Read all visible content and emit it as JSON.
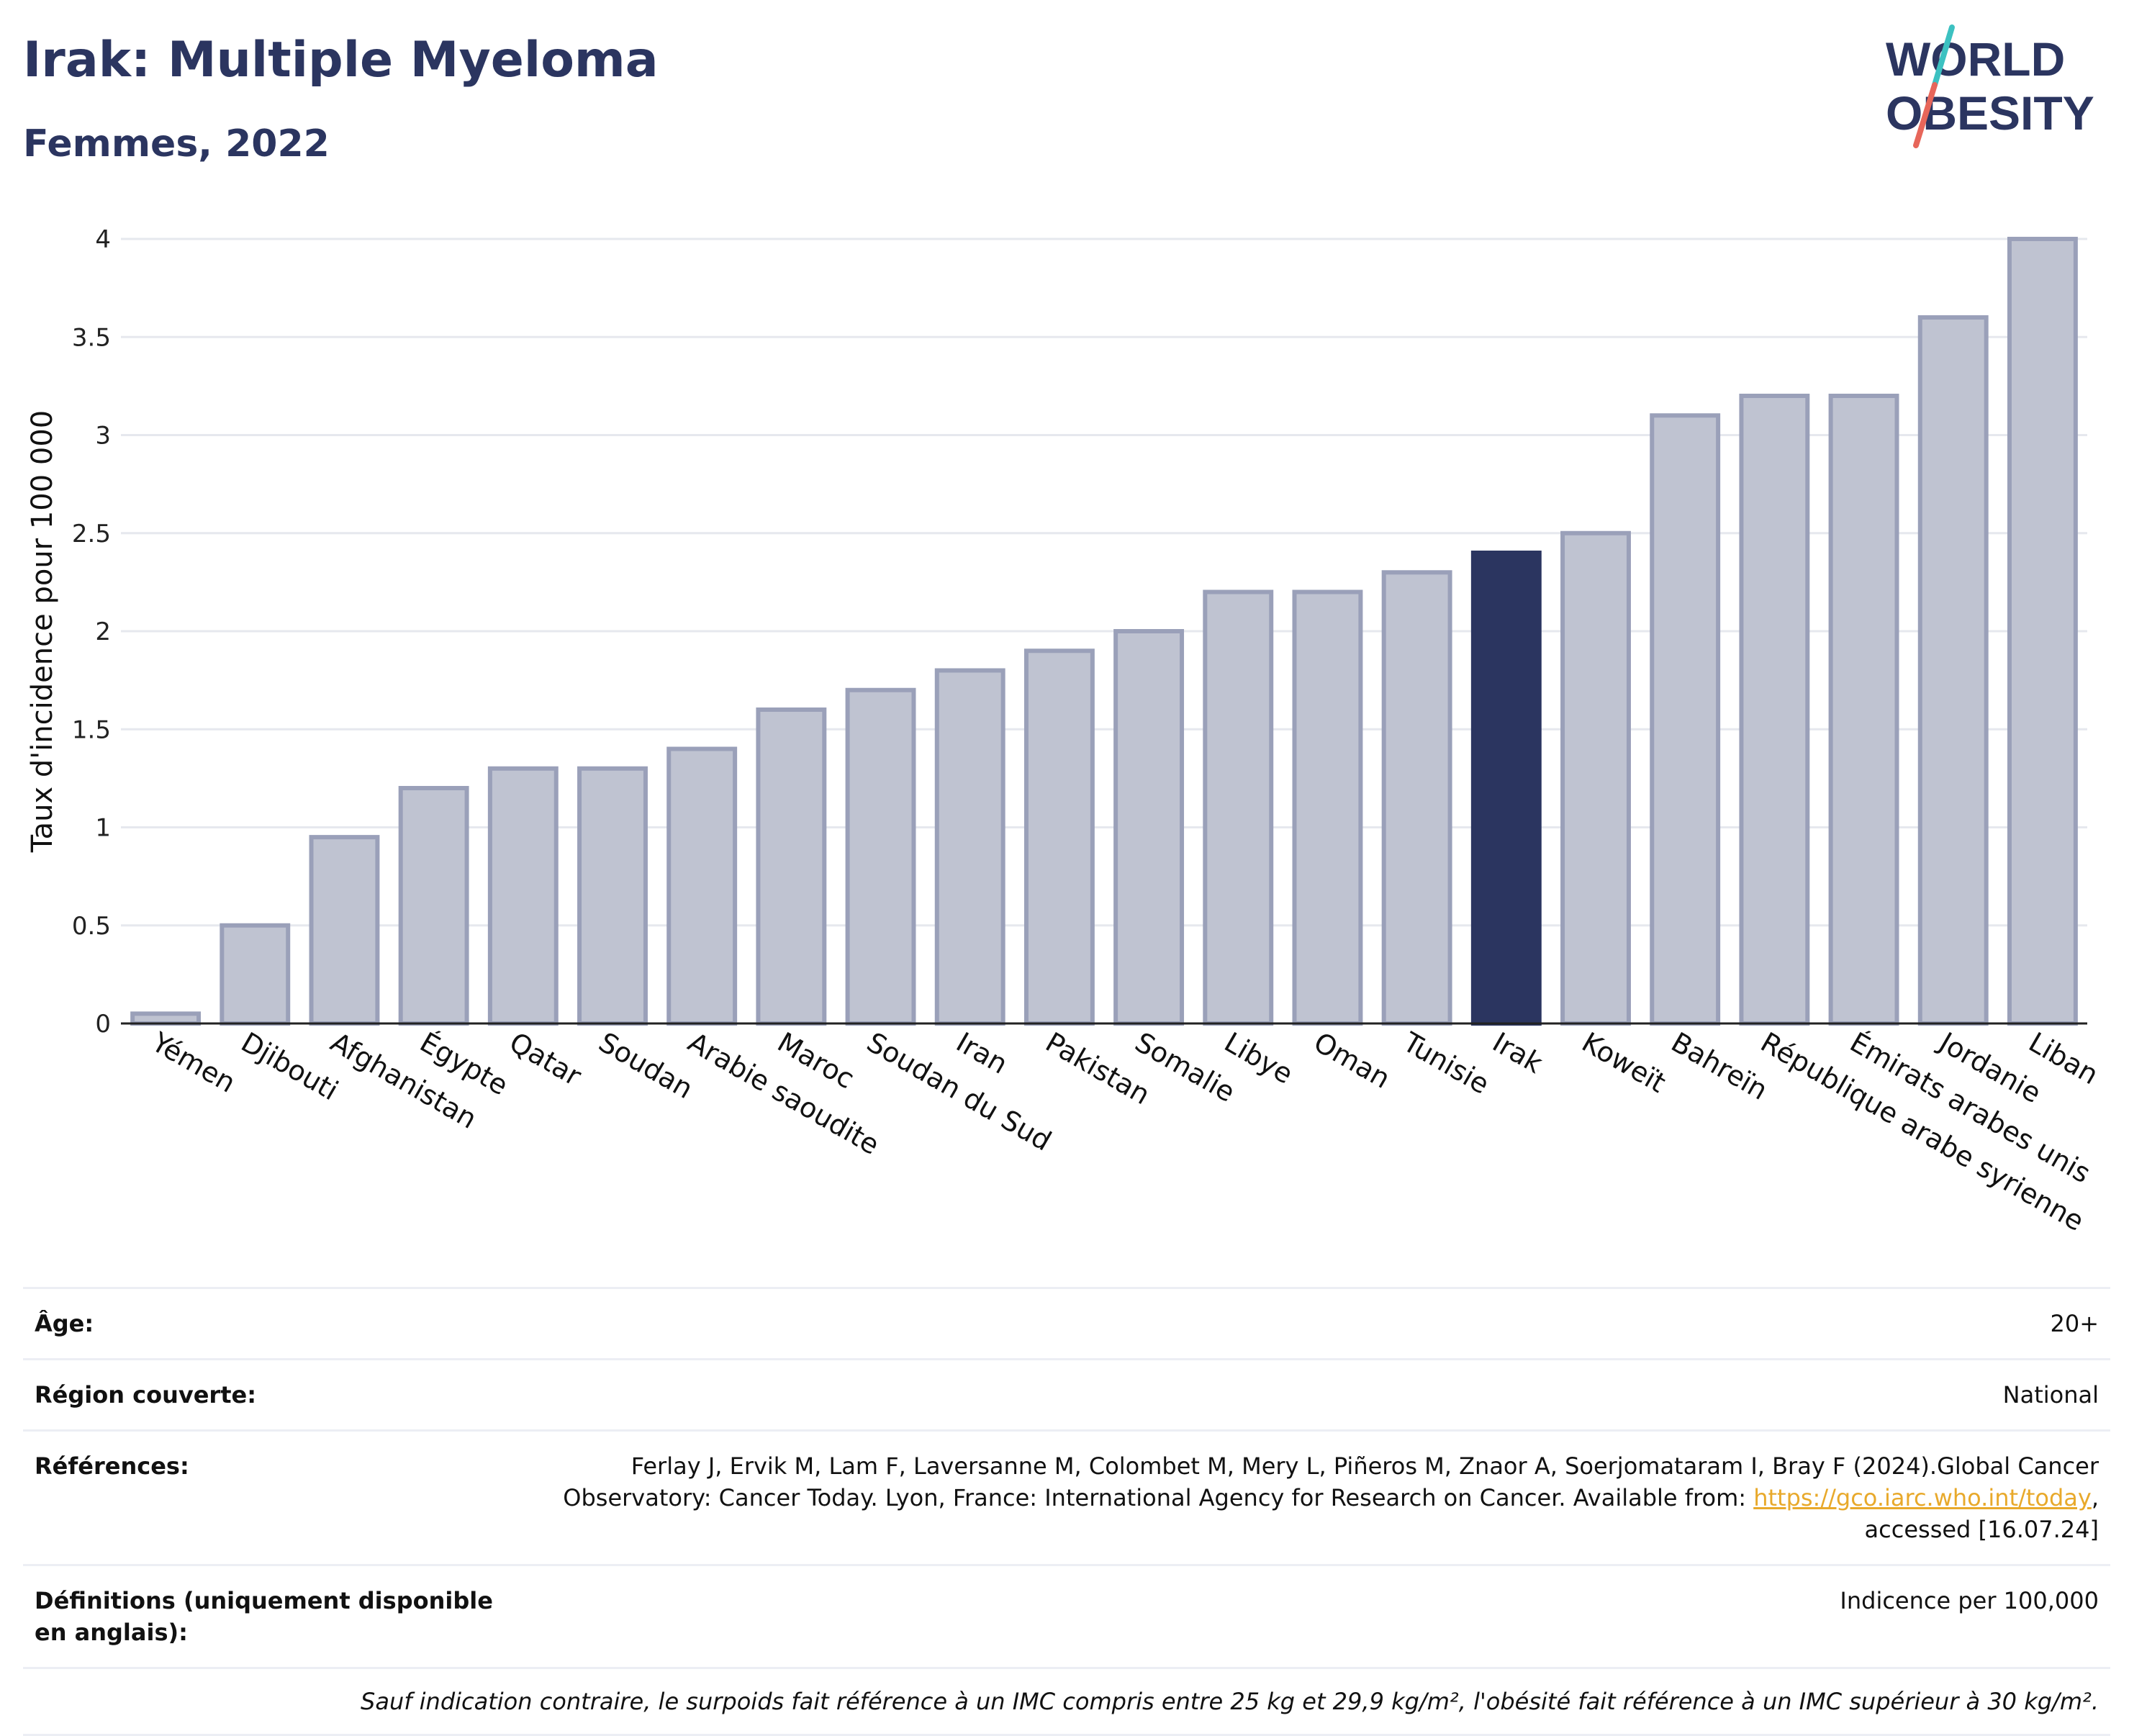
{
  "header": {
    "title": "Irak: Multiple Myeloma",
    "subtitle": "Femmes, 2022"
  },
  "logo": {
    "line1": "WORLD",
    "line2": "OBESITY",
    "accent_teal": "#3cc1c1",
    "accent_red": "#e7665a",
    "text_color": "#2b3560"
  },
  "chart_data": {
    "type": "bar",
    "ylabel": "Taux d'incidence pour 100 000",
    "ylim": [
      0,
      4
    ],
    "yticks": [
      "0",
      "0.5",
      "1",
      "1.5",
      "2",
      "2.5",
      "3",
      "3.5",
      "4"
    ],
    "grid": true,
    "highlight": "Irak",
    "bar_color": "#bfc3d1",
    "bar_border_color": "#9aa0b9",
    "highlight_color": "#2b3560",
    "categories": [
      "Yémen",
      "Djibouti",
      "Afghanistan",
      "Égypte",
      "Qatar",
      "Soudan",
      "Arabie saoudite",
      "Maroc",
      "Soudan du Sud",
      "Iran",
      "Pakistan",
      "Somalie",
      "Libye",
      "Oman",
      "Tunisie",
      "Irak",
      "Koweït",
      "Bahreïn",
      "République arabe syrienne",
      "Émirats arabes unis",
      "Jordanie",
      "Liban"
    ],
    "values": [
      0.05,
      0.5,
      0.95,
      1.2,
      1.3,
      1.3,
      1.4,
      1.6,
      1.7,
      1.8,
      1.9,
      2.0,
      2.2,
      2.2,
      2.3,
      2.4,
      2.5,
      3.1,
      3.2,
      3.2,
      3.6,
      4.0
    ]
  },
  "meta": {
    "rows": [
      {
        "key": "Âge:",
        "value": "20+"
      },
      {
        "key": "Région couverte:",
        "value": "National"
      },
      {
        "key": "Références:",
        "value_prefix": "Ferlay J, Ervik M, Lam F, Laversanne M, Colombet M, Mery L, Piñeros M, Znaor A, Soerjomataram I, Bray F (2024).Global Cancer Observatory: Cancer Today. Lyon, France: International Agency for Research on Cancer. Available from: ",
        "link": "https://gco.iarc.who.int/today",
        "value_suffix": ", accessed [16.07.24]"
      },
      {
        "key": "Définitions (uniquement disponible en anglais):",
        "value": "Indicence per 100,000"
      }
    ],
    "note": "Sauf indication contraire, le surpoids fait référence à un IMC compris entre 25 kg et 29,9 kg/m², l'obésité fait référence à un IMC supérieur à 30 kg/m²."
  }
}
